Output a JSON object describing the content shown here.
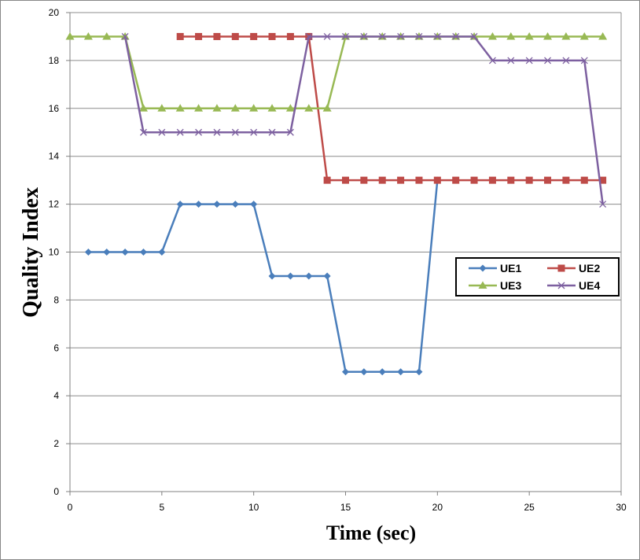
{
  "chart_data": {
    "type": "line",
    "title": "",
    "xlabel": "Time (sec)",
    "ylabel": "Quality Index",
    "xlim": [
      0,
      30
    ],
    "ylim": [
      0,
      20
    ],
    "x_ticks": [
      0,
      5,
      10,
      15,
      20,
      25,
      30
    ],
    "y_ticks": [
      0,
      2,
      4,
      6,
      8,
      10,
      12,
      14,
      16,
      18,
      20
    ],
    "grid": "horizontal",
    "legend_position": "right",
    "series": [
      {
        "name": "UE1",
        "color": "#4A7EBB",
        "marker": "diamond",
        "x": [
          1,
          2,
          3,
          4,
          5,
          6,
          7,
          8,
          9,
          10,
          11,
          12,
          13,
          14,
          15,
          16,
          17,
          18,
          19,
          20
        ],
        "y": [
          10,
          10,
          10,
          10,
          10,
          12,
          12,
          12,
          12,
          12,
          9,
          9,
          9,
          9,
          5,
          5,
          5,
          5,
          5,
          13
        ]
      },
      {
        "name": "UE2",
        "color": "#BE4B48",
        "marker": "square",
        "x": [
          6,
          7,
          8,
          9,
          10,
          11,
          12,
          13,
          14,
          15,
          16,
          17,
          18,
          19,
          20,
          21,
          22,
          23,
          24,
          25,
          26,
          27,
          28,
          29
        ],
        "y": [
          19,
          19,
          19,
          19,
          19,
          19,
          19,
          19,
          13,
          13,
          13,
          13,
          13,
          13,
          13,
          13,
          13,
          13,
          13,
          13,
          13,
          13,
          13,
          13
        ]
      },
      {
        "name": "UE3",
        "color": "#98B954",
        "marker": "triangle",
        "x": [
          0,
          1,
          2,
          3,
          4,
          5,
          6,
          7,
          8,
          9,
          10,
          11,
          12,
          13,
          14,
          15,
          16,
          17,
          18,
          19,
          20,
          21,
          22,
          23,
          24,
          25,
          26,
          27,
          28,
          29
        ],
        "y": [
          19,
          19,
          19,
          19,
          16,
          16,
          16,
          16,
          16,
          16,
          16,
          16,
          16,
          16,
          16,
          19,
          19,
          19,
          19,
          19,
          19,
          19,
          19,
          19,
          19,
          19,
          19,
          19,
          19,
          19
        ]
      },
      {
        "name": "UE4",
        "color": "#7D60A0",
        "marker": "x",
        "x": [
          3,
          4,
          5,
          6,
          7,
          8,
          9,
          10,
          11,
          12,
          13,
          14,
          15,
          16,
          17,
          18,
          19,
          20,
          21,
          22,
          23,
          24,
          25,
          26,
          27,
          28,
          29
        ],
        "y": [
          19,
          15,
          15,
          15,
          15,
          15,
          15,
          15,
          15,
          15,
          19,
          19,
          19,
          19,
          19,
          19,
          19,
          19,
          19,
          19,
          18,
          18,
          18,
          18,
          18,
          18,
          12
        ]
      }
    ]
  }
}
